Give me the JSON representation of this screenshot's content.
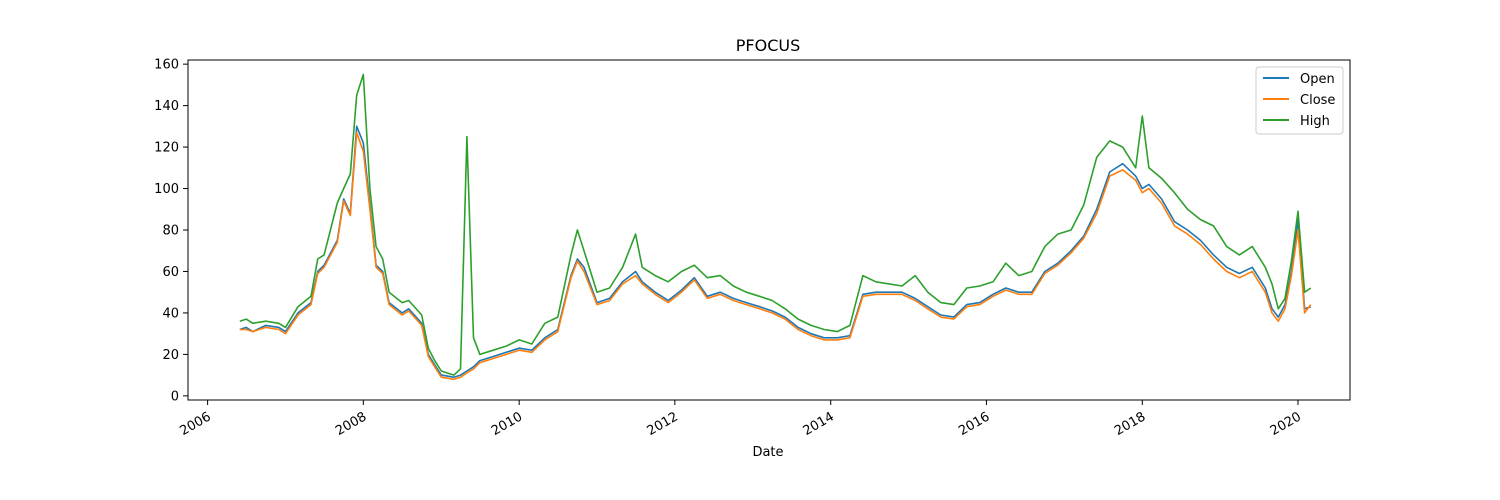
{
  "chart_data": {
    "type": "line",
    "title": "PFOCUS",
    "xlabel": "Date",
    "ylabel": "",
    "xlim": [
      "2005-10-01",
      "2020-09-01"
    ],
    "ylim": [
      -2,
      162
    ],
    "x_ticks": [
      "2006",
      "2008",
      "2010",
      "2012",
      "2014",
      "2016",
      "2018",
      "2020"
    ],
    "y_ticks": [
      0,
      20,
      40,
      60,
      80,
      100,
      120,
      140,
      160
    ],
    "legend_position": "top-right",
    "grid": false,
    "series": [
      {
        "name": "Open",
        "color": "#1f77b4"
      },
      {
        "name": "Close",
        "color": "#ff7f0e"
      },
      {
        "name": "High",
        "color": "#2ca02c"
      }
    ],
    "x": [
      "2006-06",
      "2006-07",
      "2006-08",
      "2006-10",
      "2006-12",
      "2007-01",
      "2007-03",
      "2007-05",
      "2007-06",
      "2007-07",
      "2007-09",
      "2007-10",
      "2007-11",
      "2007-12",
      "2008-01",
      "2008-02",
      "2008-03",
      "2008-04",
      "2008-05",
      "2008-07",
      "2008-08",
      "2008-10",
      "2008-11",
      "2008-12",
      "2009-01",
      "2009-03",
      "2009-04",
      "2009-05",
      "2009-06",
      "2009-07",
      "2009-09",
      "2009-11",
      "2010-01",
      "2010-03",
      "2010-05",
      "2010-07",
      "2010-09",
      "2010-10",
      "2010-11",
      "2011-01",
      "2011-03",
      "2011-05",
      "2011-07",
      "2011-08",
      "2011-10",
      "2011-12",
      "2012-02",
      "2012-04",
      "2012-06",
      "2012-08",
      "2012-10",
      "2012-12",
      "2013-02",
      "2013-04",
      "2013-06",
      "2013-08",
      "2013-10",
      "2013-12",
      "2014-02",
      "2014-04",
      "2014-06",
      "2014-08",
      "2014-10",
      "2014-12",
      "2015-02",
      "2015-04",
      "2015-06",
      "2015-08",
      "2015-10",
      "2015-12",
      "2016-02",
      "2016-04",
      "2016-06",
      "2016-08",
      "2016-10",
      "2016-12",
      "2017-02",
      "2017-04",
      "2017-06",
      "2017-08",
      "2017-10",
      "2017-12",
      "2018-01",
      "2018-02",
      "2018-04",
      "2018-06",
      "2018-08",
      "2018-10",
      "2018-12",
      "2019-02",
      "2019-04",
      "2019-06",
      "2019-08",
      "2019-09",
      "2019-10",
      "2019-11",
      "2019-12",
      "2020-01",
      "2020-02",
      "2020-03"
    ],
    "open": [
      32,
      33,
      31,
      34,
      33,
      31,
      40,
      45,
      60,
      63,
      75,
      95,
      88,
      130,
      122,
      92,
      63,
      60,
      45,
      40,
      42,
      35,
      20,
      15,
      10,
      9,
      10,
      12,
      14,
      17,
      19,
      21,
      23,
      22,
      28,
      32,
      58,
      66,
      62,
      45,
      47,
      55,
      60,
      55,
      50,
      46,
      51,
      57,
      48,
      50,
      47,
      45,
      43,
      41,
      38,
      33,
      30,
      28,
      28,
      29,
      49,
      50,
      50,
      50,
      47,
      43,
      39,
      38,
      44,
      45,
      49,
      52,
      50,
      50,
      60,
      64,
      70,
      77,
      90,
      108,
      112,
      106,
      100,
      102,
      95,
      84,
      80,
      75,
      68,
      62,
      59,
      62,
      52,
      42,
      38,
      44,
      60,
      85,
      42,
      43
    ],
    "close": [
      32,
      32,
      31,
      33,
      32,
      30,
      39,
      44,
      59,
      62,
      74,
      94,
      87,
      127,
      118,
      90,
      62,
      59,
      44,
      39,
      41,
      34,
      19,
      14,
      9,
      8,
      9,
      11,
      13,
      16,
      18,
      20,
      22,
      21,
      27,
      31,
      57,
      65,
      60,
      44,
      46,
      54,
      58,
      54,
      49,
      45,
      50,
      56,
      47,
      49,
      46,
      44,
      42,
      40,
      37,
      32,
      29,
      27,
      27,
      28,
      48,
      49,
      49,
      49,
      46,
      42,
      38,
      37,
      43,
      44,
      48,
      51,
      49,
      49,
      59,
      63,
      69,
      76,
      88,
      106,
      109,
      104,
      98,
      100,
      93,
      82,
      78,
      73,
      66,
      60,
      57,
      60,
      50,
      40,
      36,
      42,
      58,
      80,
      40,
      44
    ],
    "high": [
      36,
      37,
      35,
      36,
      35,
      33,
      43,
      48,
      66,
      68,
      93,
      100,
      107,
      145,
      155,
      100,
      72,
      66,
      50,
      45,
      46,
      39,
      23,
      17,
      12,
      10,
      13,
      125,
      28,
      20,
      22,
      24,
      27,
      25,
      35,
      38,
      68,
      80,
      70,
      50,
      52,
      62,
      78,
      62,
      58,
      55,
      60,
      63,
      57,
      58,
      53,
      50,
      48,
      46,
      42,
      37,
      34,
      32,
      31,
      34,
      58,
      55,
      54,
      53,
      58,
      50,
      45,
      44,
      52,
      53,
      55,
      64,
      58,
      60,
      72,
      78,
      80,
      92,
      115,
      123,
      120,
      110,
      135,
      110,
      105,
      98,
      90,
      85,
      82,
      72,
      68,
      72,
      62,
      54,
      42,
      47,
      65,
      89,
      50,
      52
    ]
  }
}
